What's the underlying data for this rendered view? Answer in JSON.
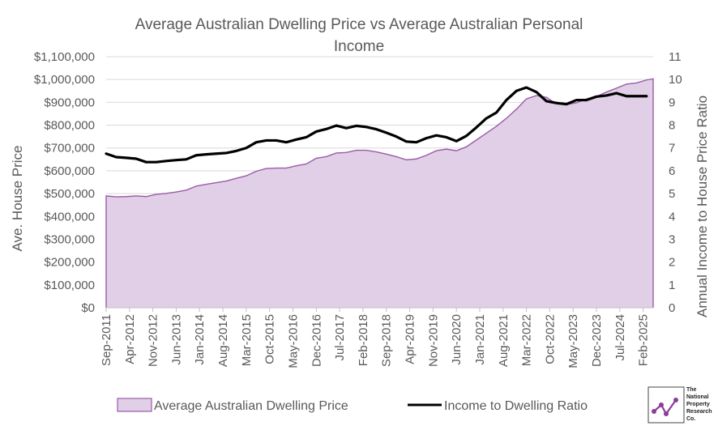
{
  "chart_data": {
    "type": "area+line",
    "title_lines": [
      "Average Australian Dwelling Price vs Average Australian Personal",
      "Income"
    ],
    "ylabel_left": "Ave. House Price",
    "ylabel_right": "Annual Income to House Price Ratio",
    "ylim_left": [
      0,
      1100000
    ],
    "ylim_right": [
      0,
      11
    ],
    "y_ticks_left": [
      "$0",
      "$100,000",
      "$200,000",
      "$300,000",
      "$400,000",
      "$500,000",
      "$600,000",
      "$700,000",
      "$800,000",
      "$900,000",
      "$1,000,000",
      "$1,100,000"
    ],
    "y_ticks_right": [
      "0",
      "1",
      "2",
      "3",
      "4",
      "5",
      "6",
      "7",
      "8",
      "9",
      "10",
      "11"
    ],
    "x_tick_labels": [
      "Sep-2011",
      "Apr-2012",
      "Nov-2012",
      "Jun-2013",
      "Jan-2014",
      "Aug-2014",
      "Mar-2015",
      "Oct-2015",
      "May-2016",
      "Dec-2016",
      "Jul-2017",
      "Feb-2018",
      "Sep-2018",
      "Apr-2019",
      "Nov-2019",
      "Jun-2020",
      "Jan-2021",
      "Aug-2021",
      "Mar-2022",
      "Oct-2022",
      "May-2023",
      "Dec-2023",
      "Jul-2024",
      "Feb-2025"
    ],
    "x_month_index": [
      0,
      7,
      14,
      21,
      28,
      35,
      42,
      49,
      56,
      63,
      70,
      77,
      84,
      91,
      98,
      105,
      112,
      119,
      126,
      133,
      140,
      147,
      154,
      161
    ],
    "x_range_months": [
      0,
      164
    ],
    "grid": true,
    "legend_position": "bottom",
    "colors": {
      "area_fill": "#e0cfe6",
      "area_line": "#9b5aa8",
      "ratio_line": "#000000",
      "grid": "#d9d9d9",
      "axis": "#bfbfbf"
    },
    "series": [
      {
        "name": "Average Australian Dwelling Price",
        "kind": "area",
        "x_months": [
          0,
          3,
          6,
          9,
          12,
          15,
          18,
          21,
          24,
          27,
          30,
          33,
          36,
          39,
          42,
          45,
          48,
          51,
          54,
          57,
          60,
          63,
          66,
          69,
          72,
          75,
          78,
          81,
          84,
          87,
          90,
          93,
          96,
          99,
          102,
          105,
          108,
          111,
          114,
          117,
          120,
          123,
          126,
          129,
          132,
          135,
          138,
          141,
          144,
          147,
          150,
          153,
          156,
          159,
          162,
          164
        ],
        "values": [
          490000,
          486000,
          487000,
          490000,
          487000,
          497000,
          501000,
          507000,
          515000,
          533000,
          541000,
          548000,
          555000,
          567000,
          578000,
          598000,
          610000,
          612000,
          612000,
          622000,
          630000,
          655000,
          662000,
          678000,
          680000,
          690000,
          690000,
          683000,
          673000,
          662000,
          648000,
          652000,
          668000,
          688000,
          695000,
          688000,
          705000,
          735000,
          765000,
          795000,
          830000,
          870000,
          915000,
          930000,
          922000,
          893000,
          890000,
          898000,
          915000,
          925000,
          945000,
          962000,
          980000,
          985000,
          998000,
          1003000
        ]
      },
      {
        "name": "Income to Dwelling Ratio",
        "kind": "line",
        "x_months": [
          0,
          3,
          6,
          9,
          12,
          15,
          18,
          21,
          24,
          27,
          30,
          33,
          36,
          39,
          42,
          45,
          48,
          51,
          54,
          57,
          60,
          63,
          66,
          69,
          72,
          75,
          78,
          81,
          84,
          87,
          90,
          93,
          96,
          99,
          102,
          105,
          108,
          111,
          114,
          117,
          120,
          123,
          126,
          129,
          132,
          135,
          138,
          141,
          144,
          147,
          150,
          153,
          156,
          159,
          162
        ],
        "values": [
          6.75,
          6.6,
          6.57,
          6.53,
          6.38,
          6.38,
          6.43,
          6.47,
          6.5,
          6.68,
          6.72,
          6.75,
          6.78,
          6.87,
          7.0,
          7.25,
          7.33,
          7.33,
          7.25,
          7.37,
          7.47,
          7.72,
          7.83,
          7.98,
          7.87,
          7.97,
          7.92,
          7.82,
          7.67,
          7.5,
          7.28,
          7.25,
          7.43,
          7.55,
          7.47,
          7.3,
          7.53,
          7.9,
          8.3,
          8.55,
          9.1,
          9.5,
          9.65,
          9.45,
          9.05,
          8.97,
          8.92,
          9.1,
          9.1,
          9.25,
          9.3,
          9.4,
          9.27,
          9.27,
          9.27
        ]
      }
    ]
  },
  "legend": {
    "area_label": "Average Australian Dwelling Price",
    "line_label": "Income to Dwelling Ratio"
  },
  "logo": {
    "lines": [
      "The",
      "National",
      "Property",
      "Research",
      "Co."
    ]
  }
}
